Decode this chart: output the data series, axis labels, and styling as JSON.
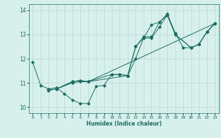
{
  "xlabel": "Humidex (Indice chaleur)",
  "background_color": "#d8f0ec",
  "grid_color": "#b8d8d4",
  "line_color": "#1a6b60",
  "xlim": [
    -0.5,
    23.5
  ],
  "ylim": [
    9.75,
    14.25
  ],
  "yticks": [
    10,
    11,
    12,
    13,
    14
  ],
  "xticks": [
    0,
    1,
    2,
    3,
    4,
    5,
    6,
    7,
    8,
    9,
    10,
    11,
    12,
    13,
    14,
    15,
    16,
    17,
    18,
    19,
    20,
    21,
    22,
    23
  ],
  "lines": [
    [
      [
        0,
        11.85
      ],
      [
        1,
        10.9
      ],
      [
        2,
        10.75
      ],
      [
        3,
        10.8
      ],
      [
        4,
        10.55
      ],
      [
        5,
        10.3
      ],
      [
        6,
        10.15
      ],
      [
        7,
        10.15
      ],
      [
        8,
        10.85
      ],
      [
        9,
        10.9
      ],
      [
        10,
        11.35
      ],
      [
        11,
        11.35
      ],
      [
        12,
        11.3
      ],
      [
        13,
        12.5
      ],
      [
        14,
        12.85
      ],
      [
        15,
        13.4
      ],
      [
        16,
        13.5
      ],
      [
        17,
        13.85
      ],
      [
        18,
        13.05
      ],
      [
        19,
        12.45
      ],
      [
        20,
        12.45
      ],
      [
        21,
        12.6
      ],
      [
        22,
        13.1
      ],
      [
        23,
        13.45
      ]
    ],
    [
      [
        2,
        10.7
      ],
      [
        3,
        10.75
      ],
      [
        5,
        11.0
      ],
      [
        6,
        11.05
      ],
      [
        7,
        11.05
      ],
      [
        10,
        11.35
      ],
      [
        11,
        11.35
      ],
      [
        12,
        11.3
      ],
      [
        13,
        12.5
      ],
      [
        14,
        12.9
      ],
      [
        15,
        12.9
      ],
      [
        16,
        13.5
      ],
      [
        17,
        13.8
      ],
      [
        18,
        13.0
      ],
      [
        20,
        12.45
      ],
      [
        21,
        12.6
      ],
      [
        22,
        13.1
      ],
      [
        23,
        13.45
      ]
    ],
    [
      [
        2,
        10.7
      ],
      [
        3,
        10.75
      ],
      [
        5,
        11.05
      ],
      [
        6,
        11.1
      ],
      [
        7,
        11.05
      ],
      [
        12,
        11.3
      ],
      [
        13,
        12.0
      ],
      [
        14,
        12.85
      ],
      [
        15,
        12.85
      ],
      [
        16,
        13.3
      ],
      [
        17,
        13.8
      ],
      [
        18,
        13.0
      ],
      [
        20,
        12.45
      ],
      [
        21,
        12.6
      ],
      [
        22,
        13.1
      ],
      [
        23,
        13.45
      ]
    ],
    [
      [
        3,
        10.75
      ],
      [
        5,
        11.05
      ],
      [
        6,
        11.1
      ],
      [
        7,
        11.05
      ],
      [
        23,
        13.45
      ]
    ]
  ]
}
